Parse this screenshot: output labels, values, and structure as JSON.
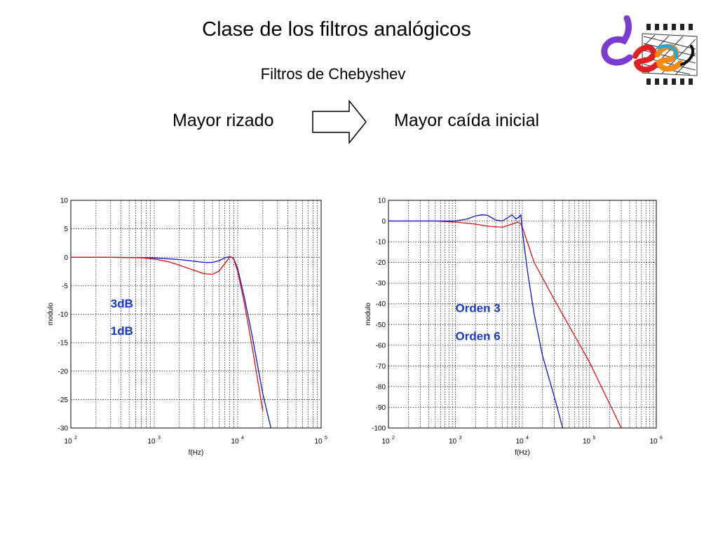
{
  "header": {
    "title": "Clase de los filtros analógicos",
    "subtitle": "Filtros de Chebyshev",
    "left_label": "Mayor rizado",
    "right_label": "Mayor caída inicial"
  },
  "colors": {
    "blue": "#1010d0",
    "red": "#e01010",
    "label_blue": "#1838c8",
    "grid": "#000000"
  },
  "logo": {
    "icon": "dee-logo-icon"
  },
  "chart_data": [
    {
      "type": "line",
      "xscale": "log",
      "xlim": [
        100,
        100000
      ],
      "ylim": [
        -30,
        10
      ],
      "yticks": [
        10,
        5,
        0,
        -5,
        -10,
        -15,
        -20,
        -25,
        -30
      ],
      "xticks": [
        100,
        1000,
        10000,
        100000
      ],
      "xtick_exponents": [
        "2",
        "3",
        "4",
        "5"
      ],
      "xlabel": "f(Hz)",
      "ylabel": "modulo",
      "grid": true,
      "annotations": [
        {
          "text": "3dB",
          "x": 300,
          "y": -8.8,
          "color": "#1838c8"
        },
        {
          "text": "1dB",
          "x": 300,
          "y": -13.6,
          "color": "#1838c8"
        }
      ],
      "series": [
        {
          "color": "#1010d0",
          "x": [
            100,
            300,
            1000,
            2000,
            3000,
            4000,
            5000,
            6000,
            7000,
            8000,
            8500,
            9000,
            10000,
            12000,
            15000,
            20000,
            25000
          ],
          "y": [
            0,
            0,
            -0.1,
            -0.4,
            -0.7,
            -0.9,
            -0.9,
            -0.6,
            -0.1,
            0.1,
            0,
            -0.3,
            -2,
            -7,
            -14,
            -24,
            -30
          ]
        },
        {
          "color": "#e01010",
          "x": [
            100,
            300,
            700,
            1000,
            1500,
            2000,
            3000,
            4000,
            5000,
            6000,
            7000,
            8000,
            8500,
            9000,
            10000,
            12000,
            15000,
            20000
          ],
          "y": [
            0,
            0,
            -0.1,
            -0.3,
            -0.8,
            -1.4,
            -2.3,
            -2.9,
            -3,
            -2.4,
            -1.1,
            0,
            0,
            -0.4,
            -2.5,
            -8,
            -16,
            -27
          ]
        }
      ]
    },
    {
      "type": "line",
      "xscale": "log",
      "xlim": [
        100,
        1000000
      ],
      "ylim": [
        -100,
        10
      ],
      "yticks": [
        10,
        0,
        -10,
        -20,
        -30,
        -40,
        -50,
        -60,
        -70,
        -80,
        -90,
        -100
      ],
      "xticks": [
        100,
        1000,
        10000,
        100000,
        1000000
      ],
      "xtick_exponents": [
        "2",
        "3",
        "4",
        "5",
        "6"
      ],
      "xlabel": "f(Hz)",
      "ylabel": "modulo",
      "grid": true,
      "annotations": [
        {
          "text": "Orden 3",
          "x": 1000,
          "y": -44,
          "color": "#1838c8"
        },
        {
          "text": "Orden 6",
          "x": 1000,
          "y": -57.5,
          "color": "#1838c8"
        }
      ],
      "series": [
        {
          "color": "#e01010",
          "x": [
            100,
            500,
            1000,
            2000,
            3000,
            5000,
            7000,
            8500,
            9500,
            10000,
            15000,
            30000,
            100000,
            300000
          ],
          "y": [
            0,
            0,
            -0.5,
            -1.5,
            -2.5,
            -3,
            -1.5,
            -0.5,
            -1.5,
            -3,
            -20,
            -38,
            -68,
            -100
          ]
        },
        {
          "color": "#1010d0",
          "x": [
            100,
            1000,
            1500,
            2000,
            2500,
            3000,
            4000,
            5000,
            6000,
            7000,
            8000,
            9000,
            9500,
            10000,
            12000,
            15000,
            20000,
            30000,
            40000
          ],
          "y": [
            0,
            0,
            1,
            2.5,
            3,
            2.8,
            0.5,
            0,
            1.5,
            3,
            1,
            2,
            3,
            -5,
            -25,
            -45,
            -65,
            -85,
            -100
          ]
        }
      ]
    }
  ]
}
